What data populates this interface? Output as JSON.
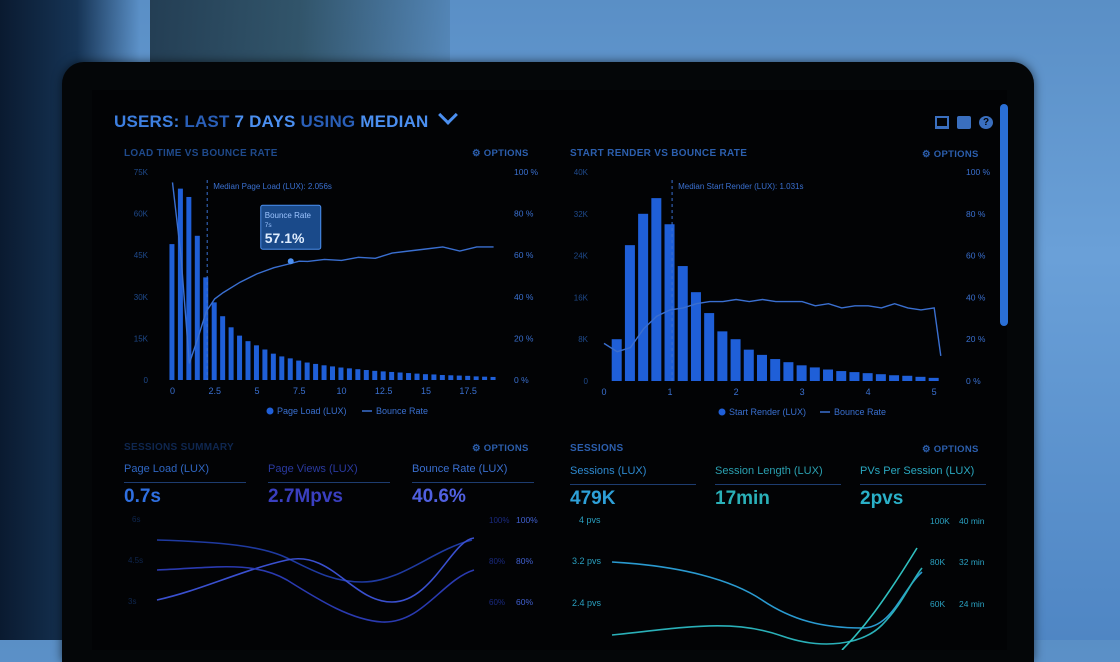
{
  "header": {
    "users": "USERS:",
    "last": "LAST",
    "days": "7 DAYS",
    "using": "USING",
    "median": "MEDIAN"
  },
  "icons": [
    "monitor-icon",
    "share-icon",
    "help-icon"
  ],
  "help_glyph": "?",
  "options_label": "OPTIONS",
  "colors": {
    "accent": "#2f6fe0",
    "bar": "#1f5fd8",
    "line": "#3a6fd0",
    "teal": "#2ab0c8",
    "dark": "#020305"
  },
  "chart_data": [
    {
      "type": "bar",
      "title": "LOAD TIME VS BOUNCE RATE",
      "yticks_left": [
        "75K",
        "60K",
        "45K",
        "30K",
        "15K",
        "0"
      ],
      "yticks_right": [
        "100 %",
        "80 %",
        "60 %",
        "40 %",
        "20 %",
        "0 %"
      ],
      "xticks": [
        "0",
        "2.5",
        "5",
        "7.5",
        "10",
        "12.5",
        "15",
        "17.5"
      ],
      "xlim": [
        -0.5,
        19.5
      ],
      "ylim": [
        0,
        75000
      ],
      "median_label": "Median Page Load (LUX): 2.056s",
      "median_x": 2.056,
      "series": [
        {
          "name": "Page Load (LUX)",
          "x": [
            0,
            0.5,
            1,
            1.5,
            2,
            2.5,
            3,
            3.5,
            4,
            4.5,
            5,
            5.5,
            6,
            6.5,
            7,
            7.5,
            8,
            8.5,
            9,
            9.5,
            10,
            10.5,
            11,
            11.5,
            12,
            12.5,
            13,
            13.5,
            14,
            14.5,
            15,
            15.5,
            16,
            16.5,
            17,
            17.5,
            18,
            18.5,
            19
          ],
          "values": [
            49000,
            69000,
            66000,
            52000,
            37000,
            28000,
            23000,
            19000,
            16000,
            14000,
            12500,
            11000,
            9500,
            8500,
            7800,
            7000,
            6300,
            5800,
            5300,
            4900,
            4500,
            4200,
            3900,
            3600,
            3300,
            3100,
            2900,
            2700,
            2500,
            2300,
            2100,
            2000,
            1800,
            1700,
            1600,
            1500,
            1300,
            1200,
            1100
          ]
        },
        {
          "name": "Bounce Rate",
          "x": [
            0,
            0.5,
            1,
            1.5,
            2,
            2.5,
            3,
            4,
            5,
            6,
            7,
            7.5,
            8,
            9,
            10,
            11,
            12,
            13,
            14,
            15,
            16,
            17,
            18,
            19
          ],
          "values": [
            95,
            60,
            8,
            20,
            33,
            39,
            42,
            47,
            51,
            54,
            56,
            57.1,
            57,
            58,
            57.5,
            59,
            58.5,
            61,
            62,
            63,
            64,
            62,
            64,
            64
          ]
        }
      ],
      "tooltip": {
        "label": "Bounce Rate",
        "sub": "7s",
        "value": "57.1%",
        "x": 7,
        "y": 57.1
      }
    },
    {
      "type": "bar",
      "title": "START RENDER VS BOUNCE RATE",
      "yticks_left": [
        "40K",
        "32K",
        "24K",
        "16K",
        "8K",
        "0"
      ],
      "yticks_right": [
        "100 %",
        "80 %",
        "60 %",
        "40 %",
        "20 %",
        "0 %"
      ],
      "xticks": [
        "0",
        "1",
        "2",
        "3",
        "4",
        "5"
      ],
      "xlim": [
        0,
        5.3
      ],
      "ylim": [
        0,
        40000
      ],
      "median_label": "Median Start Render (LUX): 1.031s",
      "median_x": 1.031,
      "series": [
        {
          "name": "Start Render (LUX)",
          "x": [
            0.2,
            0.4,
            0.6,
            0.8,
            1.0,
            1.2,
            1.4,
            1.6,
            1.8,
            2.0,
            2.2,
            2.4,
            2.6,
            2.8,
            3.0,
            3.2,
            3.4,
            3.6,
            3.8,
            4.0,
            4.2,
            4.4,
            4.6,
            4.8,
            5.0
          ],
          "values": [
            8000,
            26000,
            32000,
            35000,
            30000,
            22000,
            17000,
            13000,
            9500,
            8000,
            6000,
            5000,
            4200,
            3600,
            3000,
            2600,
            2200,
            1900,
            1700,
            1500,
            1300,
            1100,
            1000,
            800,
            600
          ]
        },
        {
          "name": "Bounce Rate",
          "x": [
            0,
            0.2,
            0.4,
            0.6,
            0.8,
            1.0,
            1.2,
            1.4,
            1.6,
            1.8,
            2.0,
            2.2,
            2.4,
            2.6,
            2.8,
            3.0,
            3.2,
            3.4,
            3.6,
            3.8,
            4.0,
            4.2,
            4.4,
            4.6,
            4.8,
            5.0,
            5.1
          ],
          "values": [
            18,
            14,
            16,
            25,
            31,
            34,
            35,
            37,
            38,
            38,
            39,
            38,
            39,
            38,
            38,
            38,
            36,
            37,
            35,
            36,
            36,
            35,
            37,
            35,
            34,
            35,
            12
          ]
        }
      ]
    }
  ],
  "bottom_left": {
    "title": "SESSIONS SUMMARY",
    "metrics": [
      {
        "label": "Page Load (LUX)",
        "value": "0.7s",
        "color": "#2f6fe0"
      },
      {
        "label": "Page Views (LUX)",
        "value": "2.7Mpvs",
        "color": "#3a3fc0"
      },
      {
        "label": "Bounce Rate (LUX)",
        "value": "40.6%",
        "color": "#5060e0"
      }
    ],
    "left_ticks": [
      "6s",
      "4.5s",
      "3s"
    ],
    "right_ticks_a": [
      "100%",
      "80%",
      "60%"
    ],
    "right_ticks_b": [
      "100%",
      "80%",
      "60%"
    ]
  },
  "bottom_right": {
    "title": "SESSIONS",
    "metrics": [
      {
        "label": "Sessions (LUX)",
        "value": "479K",
        "color": "#2ea0d8"
      },
      {
        "label": "Session Length (LUX)",
        "value": "17min",
        "color": "#2ab0b8"
      },
      {
        "label": "PVs Per Session (LUX)",
        "value": "2pvs",
        "color": "#2ab0c8"
      }
    ],
    "left_ticks": [
      "4 pvs",
      "3.2 pvs",
      "2.4 pvs"
    ],
    "right_ticks_a": [
      "100K",
      "80K",
      "60K"
    ],
    "right_ticks_b": [
      "40 min",
      "32 min",
      "24 min"
    ]
  }
}
